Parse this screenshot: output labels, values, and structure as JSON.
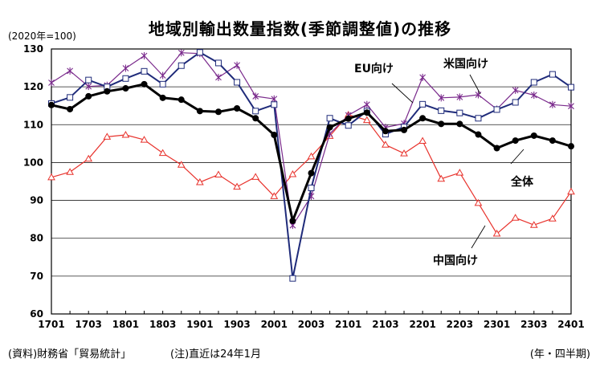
{
  "title": "地域別輸出数量指数(季節調整値)の推移",
  "base_note": "(2020年=100)",
  "source_note": "(資料)財務省「貿易統計」",
  "period_note": "(注)直近は24年1月",
  "x_unit": "(年・四半期)",
  "chart_data": {
    "type": "line",
    "title": "地域別輸出数量指数(季節調整値)の推移",
    "ylim": [
      60,
      130
    ],
    "yticks": [
      60,
      70,
      80,
      90,
      100,
      110,
      120,
      130
    ],
    "xtick_labels": [
      "1701",
      "1703",
      "1801",
      "1803",
      "1901",
      "1903",
      "2001",
      "2003",
      "2101",
      "2103",
      "2201",
      "2203",
      "2301",
      "2303",
      "2401"
    ],
    "grid": "horizontal",
    "legend": "inline labels",
    "x": [
      "1701",
      "1702",
      "1703",
      "1704",
      "1801",
      "1802",
      "1803",
      "1804",
      "1901",
      "1902",
      "1903",
      "1904",
      "2001",
      "2002",
      "2003",
      "2004",
      "2101",
      "2102",
      "2103",
      "2104",
      "2201",
      "2202",
      "2203",
      "2204",
      "2301",
      "2302",
      "2303",
      "2304",
      "2401"
    ],
    "series": [
      {
        "name": "全体",
        "color": "#000000",
        "marker": "circle",
        "values": [
          115.2,
          114.1,
          117.5,
          118.8,
          119.6,
          120.7,
          117.1,
          116.6,
          113.6,
          113.4,
          114.3,
          111.7,
          107.3,
          84.6,
          97.2,
          109.3,
          111.6,
          113.2,
          108.3,
          108.6,
          111.7,
          110.2,
          110.2,
          107.4,
          103.8,
          105.8,
          107.1,
          105.8,
          104.3
        ]
      },
      {
        "name": "EU向け",
        "color": "#1f2b7a",
        "marker": "square",
        "values": [
          115.6,
          117.2,
          121.8,
          120.0,
          122.2,
          124.1,
          120.7,
          125.6,
          129.1,
          126.3,
          121.2,
          113.6,
          115.3,
          69.4,
          93.3,
          111.7,
          109.8,
          113.6,
          107.5,
          109.4,
          115.4,
          113.7,
          113.1,
          111.7,
          114.0,
          115.9,
          121.2,
          123.3,
          119.9
        ]
      },
      {
        "name": "米国向け",
        "color": "#7a2a8c",
        "marker": "cross",
        "values": [
          121.1,
          124.2,
          120.1,
          120.4,
          124.9,
          128.2,
          123.0,
          129.0,
          128.8,
          122.5,
          125.7,
          117.5,
          116.8,
          83.4,
          91.1,
          107.6,
          112.5,
          115.3,
          109.3,
          110.3,
          122.5,
          117.1,
          117.3,
          117.9,
          114.1,
          119.1,
          117.8,
          115.3,
          114.9
        ]
      },
      {
        "name": "中国向け",
        "color": "#e8322c",
        "marker": "triangle",
        "values": [
          96.1,
          97.5,
          101.0,
          106.8,
          107.3,
          106.0,
          102.5,
          99.4,
          94.8,
          96.8,
          93.6,
          96.2,
          91.1,
          96.9,
          101.6,
          107.0,
          112.6,
          111.2,
          104.7,
          102.4,
          105.7,
          95.7,
          97.3,
          89.3,
          81.2,
          85.4,
          83.5,
          85.2,
          92.3
        ]
      }
    ]
  }
}
